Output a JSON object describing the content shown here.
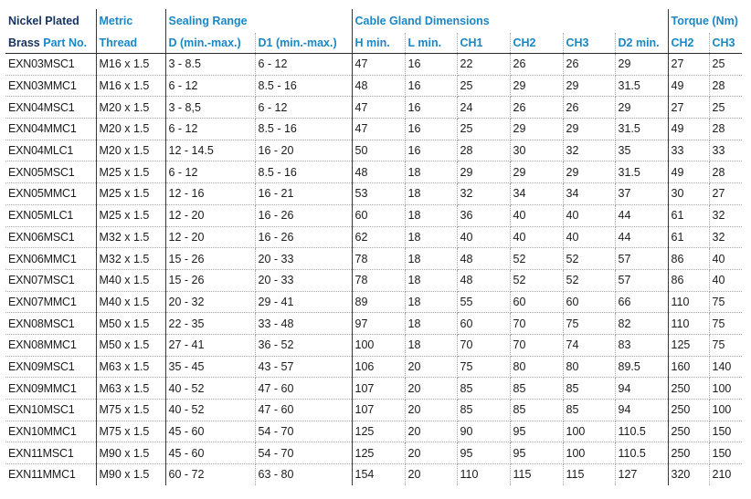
{
  "headers": {
    "brand_line1": "Nickel Plated",
    "brand_line2_a": "Brass",
    "brand_line2_b": "Part No.",
    "metric_line1": "Metric",
    "metric_line2": "Thread",
    "sealing_range": "Sealing Range",
    "sealing_d": "D (min.-max.)",
    "sealing_d1": "D1 (min.-max.)",
    "cable_gland_dimensions": "Cable Gland Dimensions",
    "h_min": "H min.",
    "l_min": "L min.",
    "ch1": "CH1",
    "ch2": "CH2",
    "ch3": "CH3",
    "d2_min": "D2 min.",
    "torque": "Torque (Nm)",
    "torque_ch2": "CH2",
    "torque_ch3": "CH3"
  },
  "rows": [
    [
      "EXN03MSC1",
      "M16 x 1.5",
      "3 - 8.5",
      "6 - 12",
      "47",
      "16",
      "22",
      "26",
      "26",
      "29",
      "27",
      "25"
    ],
    [
      "EXN03MMC1",
      "M16 x 1.5",
      "6 - 12",
      "8.5 - 16",
      "48",
      "16",
      "25",
      "29",
      "29",
      "31.5",
      "49",
      "28"
    ],
    [
      "EXN04MSC1",
      "M20 x 1.5",
      "3 - 8,5",
      "6 - 12",
      "47",
      "16",
      "24",
      "26",
      "26",
      "29",
      "27",
      "25"
    ],
    [
      "EXN04MMC1",
      "M20 x 1.5",
      "6 - 12",
      "8.5 - 16",
      "47",
      "16",
      "25",
      "29",
      "29",
      "31.5",
      "49",
      "28"
    ],
    [
      "EXN04MLC1",
      "M20 x 1.5",
      "12 - 14.5",
      "16 - 20",
      "50",
      "16",
      "28",
      "30",
      "32",
      "35",
      "33",
      "33"
    ],
    [
      "EXN05MSC1",
      "M25 x 1.5",
      "6 - 12",
      "8.5 - 16",
      "48",
      "18",
      "29",
      "29",
      "29",
      "31.5",
      "49",
      "28"
    ],
    [
      "EXN05MMC1",
      "M25 x 1.5",
      "12 - 16",
      "16 - 21",
      "53",
      "18",
      "32",
      "34",
      "34",
      "37",
      "30",
      "27"
    ],
    [
      "EXN05MLC1",
      "M25 x 1.5",
      "12 - 20",
      "16 - 26",
      "60",
      "18",
      "36",
      "40",
      "40",
      "44",
      "61",
      "32"
    ],
    [
      "EXN06MSC1",
      "M32 x 1.5",
      "12 - 20",
      "16 - 26",
      "62",
      "18",
      "40",
      "40",
      "40",
      "44",
      "61",
      "32"
    ],
    [
      "EXN06MMC1",
      "M32 x 1.5",
      "15 - 26",
      "20 - 33",
      "78",
      "18",
      "48",
      "52",
      "52",
      "57",
      "86",
      "40"
    ],
    [
      "EXN07MSC1",
      "M40 x 1.5",
      "15 - 26",
      "20 - 33",
      "78",
      "18",
      "48",
      "52",
      "52",
      "57",
      "86",
      "40"
    ],
    [
      "EXN07MMC1",
      "M40 x 1.5",
      "20 - 32",
      "29 - 41",
      "89",
      "18",
      "55",
      "60",
      "60",
      "66",
      "110",
      "75"
    ],
    [
      "EXN08MSC1",
      "M50 x 1.5",
      "22 - 35",
      "33 - 48",
      "97",
      "18",
      "60",
      "70",
      "75",
      "82",
      "110",
      "75"
    ],
    [
      "EXN08MMC1",
      "M50 x 1.5",
      "27 - 41",
      "36 - 52",
      "100",
      "18",
      "70",
      "70",
      "74",
      "83",
      "125",
      "75"
    ],
    [
      "EXN09MSC1",
      "M63 x 1.5",
      "35 - 45",
      "43 - 57",
      "106",
      "20",
      "75",
      "80",
      "80",
      "89.5",
      "160",
      "140"
    ],
    [
      "EXN09MMC1",
      "M63 x 1.5",
      "40 - 52",
      "47 - 60",
      "107",
      "20",
      "85",
      "85",
      "85",
      "94",
      "250",
      "100"
    ],
    [
      "EXN10MSC1",
      "M75 x 1.5",
      "40 - 52",
      "47 - 60",
      "107",
      "20",
      "85",
      "85",
      "85",
      "94",
      "250",
      "100"
    ],
    [
      "EXN10MMC1",
      "M75 x 1.5",
      "45 - 60",
      "54 - 70",
      "125",
      "20",
      "90",
      "95",
      "100",
      "110.5",
      "250",
      "150"
    ],
    [
      "EXN11MSC1",
      "M90 x 1.5",
      "45 - 60",
      "54 - 70",
      "125",
      "20",
      "95",
      "95",
      "100",
      "110.5",
      "250",
      "150"
    ],
    [
      "EXN11MMC1",
      "M90 x 1.5",
      "60 - 72",
      "63 - 80",
      "154",
      "20",
      "110",
      "115",
      "115",
      "127",
      "320",
      "210"
    ]
  ]
}
